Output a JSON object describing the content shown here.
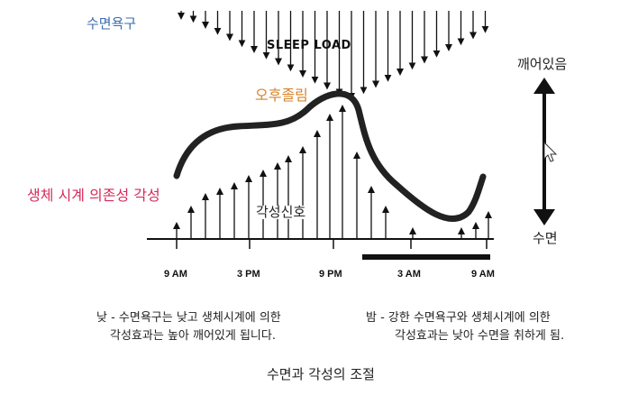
{
  "labels": {
    "sleep_drive": "수면욕구",
    "sleep_load": "SLEEP LOAD",
    "afternoon_dip": "오후졸림",
    "circadian_arousal": "생체 시계 의존성 각성",
    "alert_signal": "각성신호",
    "awake": "깨어있음",
    "sleep": "수면"
  },
  "ticks": [
    "9 AM",
    "3 PM",
    "9 PM",
    "3 AM",
    "9 AM"
  ],
  "captions": {
    "day_line1": "낮 - 수면욕구는 낮고 생체시계에 의한",
    "day_line2": "각성효과는 높아 깨어있게 됩니다.",
    "night_line1": "밤 - 강한 수면욕구와 생체시계에 의한",
    "night_line2": "각성효과는 낮아 수면을 취하게 됨."
  },
  "title": "수면과 각성의 조절",
  "colors": {
    "sleep_drive": "#3a6db0",
    "afternoon_dip": "#d6832a",
    "circadian_arousal": "#d62a5a",
    "ink": "#111111"
  }
}
